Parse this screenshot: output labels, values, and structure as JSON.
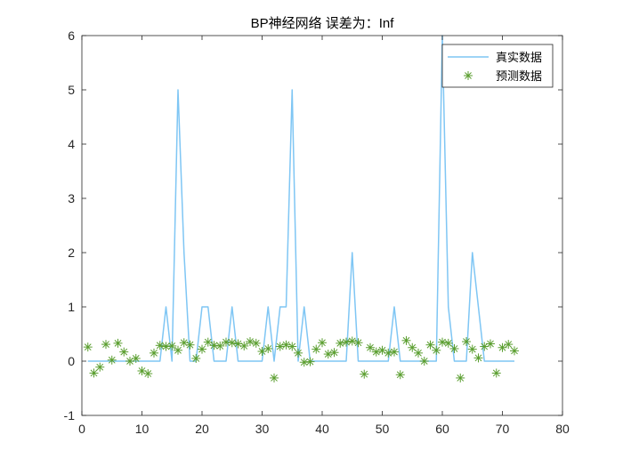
{
  "chart_data": {
    "type": "line",
    "title": "BP神经网络   误差为：Inf",
    "xlabel": "",
    "ylabel": "",
    "xlim": [
      0,
      80
    ],
    "ylim": [
      -1,
      6
    ],
    "xticks": [
      0,
      10,
      20,
      30,
      40,
      50,
      60,
      70,
      80
    ],
    "yticks": [
      -1,
      0,
      1,
      2,
      3,
      4,
      5,
      6
    ],
    "grid": false,
    "legend_position": "top-right",
    "series": [
      {
        "name": "真实数据",
        "style": "line",
        "color": "#7fc6f4",
        "x": [
          1,
          2,
          3,
          4,
          5,
          6,
          7,
          8,
          9,
          10,
          11,
          12,
          13,
          14,
          15,
          16,
          17,
          18,
          19,
          20,
          21,
          22,
          23,
          24,
          25,
          26,
          27,
          28,
          29,
          30,
          31,
          32,
          33,
          34,
          35,
          36,
          37,
          38,
          39,
          40,
          41,
          42,
          43,
          44,
          45,
          46,
          47,
          48,
          49,
          50,
          51,
          52,
          53,
          54,
          55,
          56,
          57,
          58,
          59,
          60,
          61,
          62,
          63,
          64,
          65,
          66,
          67,
          68,
          69,
          70,
          71,
          72
        ],
        "y": [
          0,
          0,
          0,
          0,
          0,
          0,
          0,
          0,
          0,
          0,
          0,
          0,
          0,
          1,
          0,
          5,
          2,
          0,
          0,
          1,
          1,
          0,
          0,
          0,
          1,
          0,
          0,
          0,
          0,
          0,
          1,
          0,
          1,
          1,
          5,
          0,
          1,
          0,
          0,
          0,
          0,
          0,
          0,
          0,
          2,
          0,
          0,
          0,
          0,
          0,
          0,
          1,
          0,
          0,
          0,
          0,
          0,
          0,
          0,
          6,
          1,
          0,
          0,
          0,
          2,
          1,
          0,
          0,
          0,
          0,
          0,
          0
        ]
      },
      {
        "name": "预测数据",
        "style": "marker",
        "marker": "asterisk",
        "color": "#5a9e2f",
        "x": [
          1,
          2,
          3,
          4,
          5,
          6,
          7,
          8,
          9,
          10,
          11,
          12,
          13,
          14,
          15,
          16,
          17,
          18,
          19,
          20,
          21,
          22,
          23,
          24,
          25,
          26,
          27,
          28,
          29,
          30,
          31,
          32,
          33,
          34,
          35,
          36,
          37,
          38,
          39,
          40,
          41,
          42,
          43,
          44,
          45,
          46,
          47,
          48,
          49,
          50,
          51,
          52,
          53,
          54,
          55,
          56,
          57,
          58,
          59,
          60,
          61,
          62,
          63,
          64,
          65,
          66,
          67,
          68,
          69,
          70,
          71,
          72
        ],
        "y": [
          0.26,
          -0.22,
          -0.11,
          0.31,
          0.02,
          0.33,
          0.17,
          0.0,
          0.05,
          -0.18,
          -0.23,
          0.15,
          0.29,
          0.27,
          0.28,
          0.2,
          0.34,
          0.3,
          0.05,
          0.22,
          0.35,
          0.29,
          0.28,
          0.35,
          0.34,
          0.32,
          0.28,
          0.36,
          0.33,
          0.18,
          0.23,
          -0.31,
          0.27,
          0.3,
          0.27,
          0.15,
          -0.02,
          -0.01,
          0.22,
          0.34,
          0.13,
          0.16,
          0.33,
          0.35,
          0.37,
          0.34,
          -0.24,
          0.25,
          0.17,
          0.2,
          0.15,
          0.17,
          -0.25,
          0.38,
          0.25,
          0.15,
          0.0,
          0.3,
          0.2,
          0.35,
          0.33,
          0.23,
          -0.31,
          0.36,
          0.22,
          0.06,
          0.27,
          0.32,
          -0.22,
          0.25,
          0.31,
          0.19
        ]
      }
    ]
  }
}
